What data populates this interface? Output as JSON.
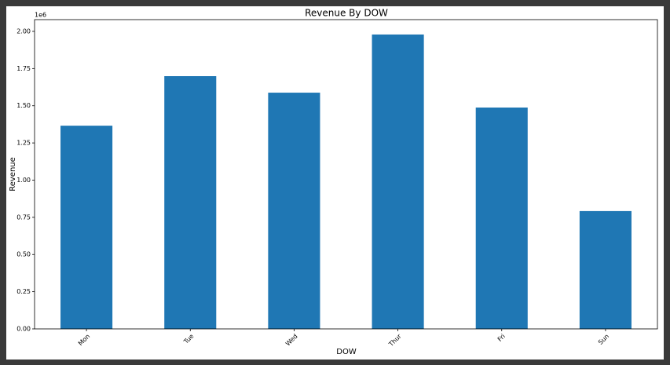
{
  "chart_data": {
    "type": "bar",
    "title": "Revenue By DOW",
    "x_label": "DOW",
    "y_label": "Revenue",
    "y_offset_label": "1e6",
    "categories": [
      "Mon",
      "Tue",
      "Wed",
      "Thur",
      "Fri",
      "Sun"
    ],
    "values": [
      1366000,
      1699000,
      1588000,
      1979000,
      1488000,
      792000
    ],
    "color": "#1f77b4",
    "ylim": [
      0,
      2079000
    ],
    "yticks": [
      {
        "value": 0,
        "label": "0.00"
      },
      {
        "value": 250000,
        "label": "0.25"
      },
      {
        "value": 500000,
        "label": "0.50"
      },
      {
        "value": 750000,
        "label": "0.75"
      },
      {
        "value": 1000000,
        "label": "1.00"
      },
      {
        "value": 1250000,
        "label": "1.25"
      },
      {
        "value": 1500000,
        "label": "1.50"
      },
      {
        "value": 1750000,
        "label": "1.75"
      },
      {
        "value": 2000000,
        "label": "2.00"
      }
    ],
    "grid": false
  }
}
